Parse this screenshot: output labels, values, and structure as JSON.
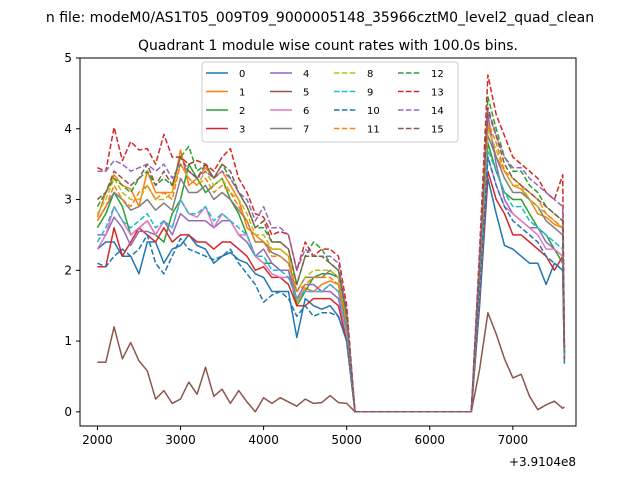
{
  "chart_data": {
    "type": "line",
    "suptitle": "n file: modeM0/AS1T05_009T09_9000005148_35966cztM0_level2_quad_clean",
    "title": "Quadrant 1 module wise count rates with 100.0s bins.",
    "xlabel": "",
    "ylabel": "",
    "x_offset_label": "+3.9104e8",
    "xlim": [
      1790,
      7760
    ],
    "ylim": [
      -0.2,
      5.0
    ],
    "xticks": [
      2000,
      3000,
      4000,
      5000,
      6000,
      7000
    ],
    "yticks": [
      0,
      1,
      2,
      3,
      4,
      5
    ],
    "legend": {
      "location": "top-center",
      "ncol": 4
    },
    "segment_a_x": [
      2000,
      2100,
      2200,
      2300,
      2400,
      2500,
      2600,
      2700,
      2800,
      2900,
      3000,
      3100,
      3200,
      3300,
      3400,
      3500,
      3600,
      3700,
      3800,
      3900,
      4000,
      4100,
      4200,
      4300,
      4400,
      4500,
      4600,
      4700,
      4800,
      4900,
      5000,
      5100
    ],
    "gap_x": [
      5100,
      6500
    ],
    "segment_b_x": [
      6500,
      6600,
      6700,
      6800,
      6900,
      7000,
      7100,
      7200,
      7300,
      7400,
      7500,
      7600,
      7620
    ],
    "series": [
      {
        "name": "0",
        "color": "#1f77b4",
        "dash": "solid",
        "a": [
          2.3,
          2.4,
          2.4,
          2.2,
          2.2,
          1.95,
          2.4,
          2.4,
          2.1,
          2.3,
          2.35,
          2.5,
          2.35,
          2.3,
          2.1,
          2.2,
          2.25,
          2.15,
          2.1,
          1.95,
          1.9,
          1.7,
          1.7,
          1.7,
          1.05,
          1.6,
          1.5,
          1.45,
          1.5,
          1.35,
          1.0,
          0.0
        ],
        "b": [
          0.0,
          1.5,
          3.3,
          2.8,
          2.35,
          2.3,
          2.2,
          2.1,
          2.1,
          1.8,
          2.1,
          2.0,
          0.68
        ]
      },
      {
        "name": "1",
        "color": "#ff7f0e",
        "dash": "solid",
        "a": [
          2.75,
          3.1,
          3.35,
          3.2,
          3.15,
          2.9,
          3.4,
          3.1,
          3.1,
          3.1,
          3.7,
          3.2,
          3.3,
          3.45,
          3.3,
          3.4,
          3.2,
          3.0,
          2.6,
          2.5,
          2.4,
          2.3,
          2.3,
          2.2,
          1.55,
          1.75,
          1.7,
          1.8,
          1.85,
          1.8,
          1.2,
          0.0
        ],
        "b": [
          0.0,
          1.9,
          4.05,
          3.6,
          3.4,
          3.2,
          3.15,
          3.0,
          2.8,
          2.75,
          2.65,
          2.6,
          0.8
        ]
      },
      {
        "name": "2",
        "color": "#2ca02c",
        "dash": "solid",
        "a": [
          2.6,
          2.8,
          3.1,
          2.9,
          2.5,
          2.6,
          2.7,
          2.5,
          2.4,
          2.8,
          3.0,
          3.5,
          3.3,
          3.1,
          3.2,
          3.3,
          3.0,
          2.8,
          2.5,
          2.2,
          2.1,
          2.1,
          2.0,
          2.0,
          1.5,
          1.7,
          1.9,
          1.95,
          1.95,
          1.9,
          1.2,
          0.0
        ],
        "b": [
          0.0,
          1.8,
          3.8,
          3.4,
          3.1,
          3.0,
          3.0,
          2.8,
          2.6,
          2.5,
          2.3,
          2.1,
          0.75
        ]
      },
      {
        "name": "3",
        "color": "#d62728",
        "dash": "solid",
        "a": [
          2.05,
          2.05,
          2.6,
          2.2,
          2.4,
          2.6,
          2.5,
          2.4,
          2.6,
          2.4,
          2.5,
          2.5,
          2.4,
          2.4,
          2.3,
          2.4,
          2.4,
          2.3,
          2.2,
          2.0,
          2.05,
          1.9,
          1.9,
          1.8,
          1.5,
          1.5,
          1.6,
          1.6,
          1.6,
          1.5,
          1.0,
          0.0
        ],
        "b": [
          0.0,
          1.6,
          3.4,
          3.0,
          2.8,
          2.5,
          2.5,
          2.4,
          2.3,
          2.2,
          2.0,
          2.2,
          0.75
        ]
      },
      {
        "name": "4",
        "color": "#9467bd",
        "dash": "solid",
        "a": [
          2.5,
          2.5,
          2.75,
          2.6,
          2.35,
          2.55,
          2.55,
          2.5,
          2.7,
          2.5,
          2.8,
          2.7,
          2.7,
          2.7,
          2.6,
          2.7,
          2.7,
          2.5,
          2.4,
          2.2,
          2.3,
          2.1,
          2.0,
          2.0,
          1.6,
          1.8,
          1.8,
          1.7,
          1.7,
          1.6,
          1.1,
          0.0
        ],
        "b": [
          0.0,
          1.8,
          4.2,
          3.5,
          3.0,
          2.8,
          2.7,
          2.6,
          2.6,
          2.4,
          2.3,
          2.2,
          0.8
        ]
      },
      {
        "name": "5",
        "color": "#8c564b",
        "dash": "solid",
        "a": [
          0.7,
          0.7,
          1.2,
          0.75,
          0.98,
          0.72,
          0.58,
          0.18,
          0.3,
          0.12,
          0.18,
          0.42,
          0.25,
          0.63,
          0.22,
          0.32,
          0.12,
          0.3,
          0.14,
          0.0,
          0.2,
          0.12,
          0.2,
          0.14,
          0.08,
          0.18,
          0.12,
          0.13,
          0.23,
          0.13,
          0.12,
          0.0
        ],
        "b": [
          0.0,
          0.6,
          1.4,
          1.1,
          0.75,
          0.48,
          0.53,
          0.22,
          0.03,
          0.1,
          0.15,
          0.05,
          0.07
        ]
      },
      {
        "name": "6",
        "color": "#e377c2",
        "dash": "solid",
        "a": [
          2.3,
          2.5,
          2.9,
          2.7,
          2.5,
          2.6,
          2.7,
          2.5,
          2.7,
          2.6,
          3.0,
          2.8,
          2.75,
          2.9,
          2.6,
          2.8,
          2.7,
          2.5,
          2.5,
          2.2,
          2.1,
          1.95,
          1.9,
          1.9,
          1.6,
          1.7,
          1.7,
          1.7,
          1.8,
          1.7,
          1.1,
          0.0
        ],
        "b": [
          0.0,
          1.7,
          3.6,
          3.2,
          2.9,
          2.8,
          2.7,
          2.6,
          2.5,
          2.3,
          2.3,
          2.2,
          0.8
        ]
      },
      {
        "name": "7",
        "color": "#7f7f7f",
        "dash": "solid",
        "a": [
          2.7,
          2.9,
          3.1,
          3.0,
          2.85,
          2.9,
          3.0,
          2.85,
          2.95,
          2.85,
          3.3,
          3.1,
          3.1,
          3.2,
          3.0,
          3.1,
          3.0,
          2.85,
          2.7,
          2.4,
          2.4,
          2.25,
          2.2,
          2.1,
          1.7,
          1.9,
          1.9,
          1.9,
          2.0,
          1.9,
          1.3,
          0.0
        ],
        "b": [
          0.0,
          1.9,
          3.9,
          3.6,
          3.3,
          3.1,
          3.1,
          3.0,
          2.9,
          2.7,
          2.6,
          2.5,
          0.85
        ]
      },
      {
        "name": "8",
        "color": "#bcbd22",
        "dash": "dashed",
        "a": [
          2.8,
          3.0,
          3.3,
          3.1,
          3.0,
          3.0,
          3.2,
          3.0,
          3.0,
          3.1,
          3.5,
          3.3,
          3.2,
          3.4,
          3.2,
          3.3,
          3.1,
          3.0,
          2.8,
          2.5,
          2.5,
          2.3,
          2.3,
          2.2,
          1.7,
          1.9,
          2.0,
          2.0,
          2.0,
          1.9,
          1.3,
          0.0
        ],
        "b": [
          0.0,
          2.0,
          4.0,
          3.7,
          3.4,
          3.2,
          3.2,
          3.0,
          2.9,
          2.8,
          2.7,
          2.6,
          0.85
        ]
      },
      {
        "name": "9",
        "color": "#17becf",
        "dash": "dashed",
        "a": [
          2.4,
          2.6,
          2.9,
          2.7,
          2.6,
          2.7,
          2.8,
          2.6,
          2.7,
          2.6,
          3.0,
          2.8,
          2.8,
          2.9,
          2.7,
          2.8,
          2.7,
          2.6,
          2.5,
          2.2,
          2.2,
          2.0,
          2.0,
          1.9,
          1.6,
          1.7,
          1.7,
          1.7,
          1.8,
          1.7,
          1.15,
          0.0
        ],
        "b": [
          0.0,
          1.8,
          3.7,
          3.4,
          3.1,
          2.9,
          2.9,
          2.7,
          2.6,
          2.5,
          2.4,
          2.3,
          0.8
        ]
      },
      {
        "name": "10",
        "color": "#1f77b4",
        "dash": "dashed",
        "a": [
          2.1,
          2.05,
          2.2,
          2.3,
          2.2,
          2.3,
          2.5,
          2.1,
          1.95,
          2.2,
          2.45,
          2.3,
          2.25,
          2.2,
          2.15,
          2.2,
          2.3,
          2.1,
          1.95,
          1.8,
          1.55,
          1.65,
          1.7,
          1.6,
          1.35,
          1.5,
          1.35,
          1.4,
          1.4,
          1.35,
          1.0,
          0.0
        ],
        "b": [
          0.0,
          1.7,
          3.6,
          3.2,
          2.9,
          2.7,
          2.6,
          2.5,
          2.4,
          2.2,
          2.1,
          2.0,
          0.8
        ]
      },
      {
        "name": "11",
        "color": "#ff7f0e",
        "dash": "dashed",
        "a": [
          2.7,
          2.9,
          3.2,
          3.0,
          2.9,
          3.1,
          3.2,
          3.0,
          3.1,
          3.0,
          3.5,
          3.3,
          3.2,
          3.3,
          3.1,
          3.2,
          3.1,
          2.9,
          2.7,
          2.4,
          2.4,
          2.2,
          2.2,
          2.1,
          1.7,
          1.8,
          1.9,
          1.9,
          1.9,
          1.8,
          1.25,
          0.0
        ],
        "b": [
          0.0,
          2.0,
          4.1,
          3.8,
          3.4,
          3.3,
          3.2,
          3.1,
          3.0,
          2.8,
          2.7,
          2.6,
          0.85
        ]
      },
      {
        "name": "12",
        "color": "#2ca02c",
        "dash": "dashed",
        "a": [
          2.9,
          3.1,
          3.3,
          3.2,
          3.1,
          3.3,
          3.4,
          3.2,
          3.3,
          3.2,
          3.6,
          3.75,
          3.4,
          3.5,
          3.3,
          3.5,
          3.3,
          3.1,
          2.9,
          2.6,
          2.6,
          2.4,
          2.4,
          2.3,
          1.8,
          2.2,
          2.4,
          2.3,
          2.1,
          2.0,
          1.35,
          0.0
        ],
        "b": [
          0.0,
          2.1,
          4.45,
          4.0,
          3.6,
          3.4,
          3.4,
          3.2,
          3.1,
          2.9,
          2.8,
          2.7,
          0.9
        ]
      },
      {
        "name": "13",
        "color": "#d62728",
        "dash": "dashed",
        "a": [
          3.45,
          3.4,
          4.02,
          3.55,
          3.82,
          3.7,
          3.72,
          3.5,
          3.92,
          3.6,
          3.6,
          3.5,
          3.55,
          3.5,
          3.4,
          3.6,
          3.72,
          3.3,
          3.1,
          2.8,
          2.75,
          2.5,
          2.55,
          2.5,
          2.0,
          2.4,
          2.2,
          2.3,
          2.3,
          2.2,
          1.5,
          0.0
        ],
        "b": [
          0.0,
          2.3,
          4.76,
          4.2,
          3.9,
          3.6,
          3.5,
          3.4,
          3.3,
          3.1,
          3.0,
          3.35,
          0.95
        ]
      },
      {
        "name": "14",
        "color": "#9467bd",
        "dash": "dashed",
        "a": [
          3.4,
          3.4,
          3.55,
          3.5,
          3.4,
          3.45,
          3.5,
          3.4,
          3.5,
          3.3,
          3.5,
          3.4,
          3.3,
          3.4,
          3.3,
          3.4,
          3.3,
          3.1,
          3.0,
          2.7,
          2.9,
          2.6,
          2.6,
          2.5,
          2.0,
          2.3,
          2.2,
          2.2,
          2.2,
          2.1,
          1.4,
          0.0
        ],
        "b": [
          0.0,
          2.2,
          4.25,
          3.9,
          3.6,
          3.45,
          3.45,
          3.3,
          3.2,
          3.1,
          3.0,
          2.9,
          0.9
        ]
      },
      {
        "name": "15",
        "color": "#8c564b",
        "dash": "dashed",
        "a": [
          3.0,
          3.1,
          3.4,
          3.3,
          3.2,
          3.3,
          3.5,
          3.2,
          3.4,
          3.2,
          3.6,
          3.4,
          3.3,
          3.5,
          3.3,
          3.5,
          3.4,
          3.1,
          2.9,
          2.6,
          2.7,
          2.4,
          2.4,
          2.3,
          1.8,
          2.2,
          2.2,
          2.2,
          2.1,
          2.0,
          1.4,
          0.0
        ],
        "b": [
          0.0,
          2.1,
          4.3,
          3.9,
          3.5,
          3.3,
          3.2,
          3.1,
          3.0,
          2.9,
          2.8,
          2.7,
          0.9
        ]
      }
    ]
  }
}
